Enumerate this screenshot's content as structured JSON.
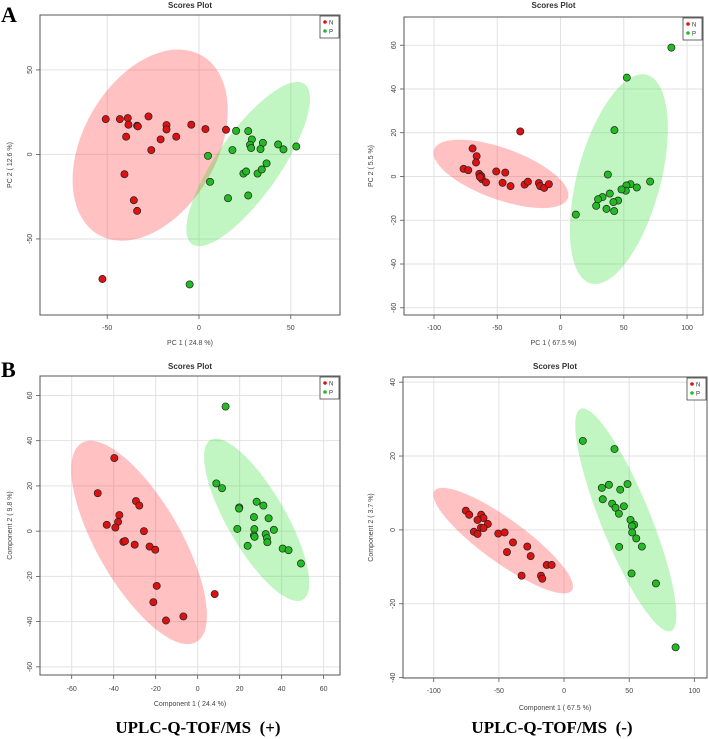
{
  "figure": {
    "panel_labels": [
      "A",
      "B"
    ],
    "captions": [
      "UPLC-Q-TOF/MS  (+)",
      "UPLC-Q-TOF/MS  (-)"
    ]
  },
  "colors": {
    "N": "#dd1111",
    "P": "#22bb22",
    "N_ellipse": "#ff3333",
    "P_ellipse": "#33dd33"
  },
  "chart_data": [
    {
      "type": "scatter",
      "title": "Scores Plot",
      "xlabel": "PC 1 ( 24.8 %)",
      "ylabel": "PC 2 ( 12.6 %)",
      "xlim": [
        -86.6,
        76.8
      ],
      "ylim": [
        -95,
        82.5
      ],
      "xticks": [
        -50,
        0,
        50
      ],
      "yticks": [
        -50,
        0,
        50
      ],
      "grid": true,
      "legend": {
        "placement": "top-right",
        "entries": [
          "N",
          "P"
        ]
      },
      "series": [
        {
          "name": "N",
          "points": [
            [
              -50.8,
              20.9
            ],
            [
              -43.1,
              20.9
            ],
            [
              -38.8,
              21.5
            ],
            [
              -38.4,
              17.6
            ],
            [
              -33.7,
              17.0
            ],
            [
              -33.3,
              16.6
            ],
            [
              -27.5,
              22.5
            ],
            [
              -39.7,
              10.5
            ],
            [
              -40.6,
              -11.7
            ],
            [
              -35.5,
              -27.1
            ],
            [
              -33.7,
              -33.4
            ],
            [
              -26.0,
              2.6
            ],
            [
              -20.9,
              8.9
            ],
            [
              -17.7,
              17.4
            ],
            [
              -17.7,
              14.8
            ],
            [
              -12.4,
              10.5
            ],
            [
              -4.2,
              17.6
            ],
            [
              3.5,
              15.0
            ],
            [
              14.7,
              14.6
            ],
            [
              -52.6,
              -73.7
            ]
          ],
          "ellipse": {
            "center": [
              -26.6,
              5.5
            ],
            "axis1": [
              28.2,
              53.0
            ],
            "axis2": [
              31.5,
              -19.8
            ]
          }
        },
        {
          "name": "P",
          "points": [
            [
              20.2,
              14.0
            ],
            [
              26.8,
              13.8
            ],
            [
              28.8,
              8.9
            ],
            [
              27.8,
              5.7
            ],
            [
              28.4,
              3.8
            ],
            [
              34.8,
              6.9
            ],
            [
              33.5,
              3.2
            ],
            [
              43.1,
              5.9
            ],
            [
              46.0,
              3.0
            ],
            [
              53.0,
              4.7
            ],
            [
              18.2,
              2.6
            ],
            [
              4.9,
              -0.8
            ],
            [
              6.0,
              -16.2
            ],
            [
              15.8,
              -25.9
            ],
            [
              26.8,
              -24.3
            ],
            [
              24.2,
              -11.3
            ],
            [
              25.7,
              -10.1
            ],
            [
              31.9,
              -11.3
            ],
            [
              34.2,
              -8.9
            ],
            [
              36.8,
              -5.3
            ],
            [
              -5.1,
              -76.9
            ]
          ],
          "ellipse": {
            "center": [
              26.8,
              -5.7
            ],
            "axis1": [
              30.6,
              47.4
            ],
            "axis2": [
              14.1,
              -10.7
            ]
          }
        }
      ]
    },
    {
      "type": "scatter",
      "title": "Scores Plot",
      "xlabel": "PC 1 ( 67.5 %)",
      "ylabel": "PC 2 ( 5.5 %)",
      "xlim": [
        -123.7,
        112.6
      ],
      "ylim": [
        -63.3,
        72.9
      ],
      "xticks": [
        -100,
        -50,
        0,
        50,
        100
      ],
      "yticks": [
        -60,
        -40,
        -20,
        0,
        20,
        40,
        60
      ],
      "grid": true,
      "legend": {
        "placement": "top-right",
        "entries": [
          "N",
          "P"
        ]
      },
      "series": [
        {
          "name": "N",
          "points": [
            [
              -69.5,
              12.8
            ],
            [
              -66.3,
              9.3
            ],
            [
              -66.8,
              6.4
            ],
            [
              -76.6,
              3.5
            ],
            [
              -72.9,
              2.9
            ],
            [
              -64.2,
              1.2
            ],
            [
              -62.6,
              0.2
            ],
            [
              -62.1,
              -1.2
            ],
            [
              -58.9,
              -2.7
            ],
            [
              -50.8,
              2.3
            ],
            [
              -43.7,
              1.8
            ],
            [
              -45.8,
              -2.9
            ],
            [
              -39.5,
              -4.4
            ],
            [
              -31.8,
              20.6
            ],
            [
              -28.4,
              -3.7
            ],
            [
              -25.8,
              -2.4
            ],
            [
              -17.1,
              -3.0
            ],
            [
              -16.1,
              -4.4
            ],
            [
              -12.9,
              -5.2
            ],
            [
              -9.2,
              -3.5
            ],
            [
              -63.7,
              -0.2
            ]
          ],
          "ellipse": {
            "center": [
              -47.1,
              1.2
            ],
            "axis1": [
              52.9,
              -11.1
            ],
            "axis2": [
              -6.9,
              -11.0
            ]
          }
        },
        {
          "name": "P",
          "points": [
            [
              87.6,
              58.9
            ],
            [
              52.4,
              45.2
            ],
            [
              42.6,
              21.2
            ],
            [
              37.4,
              0.9
            ],
            [
              70.8,
              -2.3
            ],
            [
              60.3,
              -5.0
            ],
            [
              55.3,
              -3.5
            ],
            [
              52.1,
              -4.1
            ],
            [
              51.6,
              -6.5
            ],
            [
              48.2,
              -5.9
            ],
            [
              45.5,
              -11.0
            ],
            [
              41.8,
              -11.7
            ],
            [
              42.4,
              -15.8
            ],
            [
              36.3,
              -14.8
            ],
            [
              38.9,
              -7.8
            ],
            [
              33.2,
              -9.4
            ],
            [
              29.7,
              -10.4
            ],
            [
              28.2,
              -13.4
            ],
            [
              12.1,
              -17.4
            ]
          ],
          "ellipse": {
            "center": [
              46.1,
              -1.2
            ],
            "axis1": [
              22.1,
              47.7
            ],
            "axis2": [
              31.8,
              -4.9
            ]
          }
        }
      ]
    },
    {
      "type": "scatter",
      "title": "Scores Plot",
      "xlabel": "Component 1 ( 24.4 %)",
      "ylabel": "Component 2 ( 9.8 %)",
      "xlim": [
        -75.1,
        67.8
      ],
      "ylim": [
        -63.6,
        68.6
      ],
      "xticks": [
        -60,
        -40,
        -20,
        0,
        20,
        40,
        60
      ],
      "yticks": [
        -60,
        -40,
        -20,
        0,
        20,
        40,
        60
      ],
      "grid": true,
      "legend": {
        "placement": "top-right",
        "entries": [
          "N",
          "P"
        ]
      },
      "series": [
        {
          "name": "N",
          "points": [
            [
              -39.7,
              32.3
            ],
            [
              -47.6,
              16.8
            ],
            [
              -29.4,
              13.3
            ],
            [
              -27.8,
              11.3
            ],
            [
              -37.3,
              7.1
            ],
            [
              -37.9,
              4.1
            ],
            [
              -43.3,
              2.8
            ],
            [
              -39.2,
              1.6
            ],
            [
              -25.6,
              0
            ],
            [
              -35.4,
              -4.7
            ],
            [
              -34.6,
              -4.4
            ],
            [
              -30.0,
              -6.0
            ],
            [
              -22.9,
              -6.8
            ],
            [
              -20.2,
              -8.2
            ],
            [
              -19.5,
              -24.2
            ],
            [
              -21.1,
              -31.4
            ],
            [
              -15.1,
              -39.5
            ],
            [
              -6.8,
              -37.7
            ],
            [
              8.1,
              -27.8
            ]
          ],
          "ellipse": {
            "center": [
              -27.9,
              -5.0
            ],
            "axis1": [
              27.3,
              -44.0
            ],
            "axis2": [
              -17.3,
              -9.3
            ]
          }
        },
        {
          "name": "P",
          "points": [
            [
              13.3,
              55.1
            ],
            [
              8.9,
              21.1
            ],
            [
              11.6,
              19.0
            ],
            [
              19.8,
              10.5
            ],
            [
              19.7,
              10.0
            ],
            [
              28.1,
              13.0
            ],
            [
              31.3,
              11.3
            ],
            [
              26.8,
              6.2
            ],
            [
              33.8,
              5.7
            ],
            [
              18.9,
              1.0
            ],
            [
              27.0,
              0.9
            ],
            [
              36.3,
              0.6
            ],
            [
              26.8,
              -1.9
            ],
            [
              27.1,
              -2.5
            ],
            [
              32.4,
              -1.3
            ],
            [
              33.0,
              -3.1
            ],
            [
              33.2,
              -4.9
            ],
            [
              23.8,
              -6.5
            ],
            [
              40.5,
              -7.7
            ],
            [
              43.3,
              -8.4
            ],
            [
              49.2,
              -14.3
            ]
          ],
          "ellipse": {
            "center": [
              28.1,
              5.0
            ],
            "axis1": [
              22.0,
              -35.3
            ],
            "axis2": [
              -12.0,
              -6.5
            ]
          }
        }
      ]
    },
    {
      "type": "scatter",
      "title": "Scores Plot",
      "xlabel": "Component 1 ( 67.5 %)",
      "ylabel": "Component 2 ( 3.7 %)",
      "xlim": [
        -123.6,
        109.7
      ],
      "ylim": [
        -40.1,
        41.4
      ],
      "xticks": [
        -100,
        -50,
        0,
        50,
        100
      ],
      "yticks": [
        -40,
        -20,
        0,
        20,
        40
      ],
      "grid": true,
      "legend": {
        "placement": "top-right",
        "entries": [
          "N",
          "P"
        ]
      },
      "series": [
        {
          "name": "N",
          "points": [
            [
              -75.4,
              5.2
            ],
            [
              -72.8,
              4.1
            ],
            [
              -63.6,
              4.1
            ],
            [
              -61.8,
              3.2
            ],
            [
              -66.4,
              2.7
            ],
            [
              -58.5,
              1.6
            ],
            [
              -63.8,
              0.6
            ],
            [
              -61.8,
              0.5
            ],
            [
              -69.2,
              -0.5
            ],
            [
              -66.4,
              -1.1
            ],
            [
              -50.5,
              -1.0
            ],
            [
              -45.6,
              -0.7
            ],
            [
              -39.2,
              -3.4
            ],
            [
              -43.8,
              -6.0
            ],
            [
              -28.2,
              -4.5
            ],
            [
              -25.6,
              -7.1
            ],
            [
              -13.3,
              -9.5
            ],
            [
              -9.5,
              -9.5
            ],
            [
              -32.6,
              -12.4
            ],
            [
              -17.7,
              -12.4
            ],
            [
              -16.7,
              -13.2
            ]
          ],
          "ellipse": {
            "center": [
              -46.7,
              -2.9
            ],
            "axis1": [
              52.7,
              -13.5
            ],
            "axis2": [
              -9.8,
              -4.7
            ]
          }
        },
        {
          "name": "P",
          "points": [
            [
              14.4,
              24.1
            ],
            [
              38.7,
              21.9
            ],
            [
              29.0,
              11.4
            ],
            [
              34.4,
              12.2
            ],
            [
              48.7,
              12.4
            ],
            [
              43.1,
              10.9
            ],
            [
              29.7,
              8.3
            ],
            [
              36.9,
              7.1
            ],
            [
              39.5,
              6.0
            ],
            [
              45.9,
              6.4
            ],
            [
              42.1,
              4.4
            ],
            [
              51.0,
              2.7
            ],
            [
              53.8,
              1.4
            ],
            [
              52.1,
              1.0
            ],
            [
              52.3,
              -0.7
            ],
            [
              55.4,
              -2.3
            ],
            [
              59.7,
              -4.5
            ],
            [
              42.3,
              -4.6
            ],
            [
              51.8,
              -11.8
            ],
            [
              70.5,
              -14.5
            ],
            [
              85.6,
              -31.8
            ]
          ],
          "ellipse": {
            "center": [
              47.4,
              2.7
            ],
            "axis1": [
              34.6,
              -30.1
            ],
            "axis2": [
              -17.6,
              -2.5
            ]
          }
        }
      ]
    }
  ]
}
